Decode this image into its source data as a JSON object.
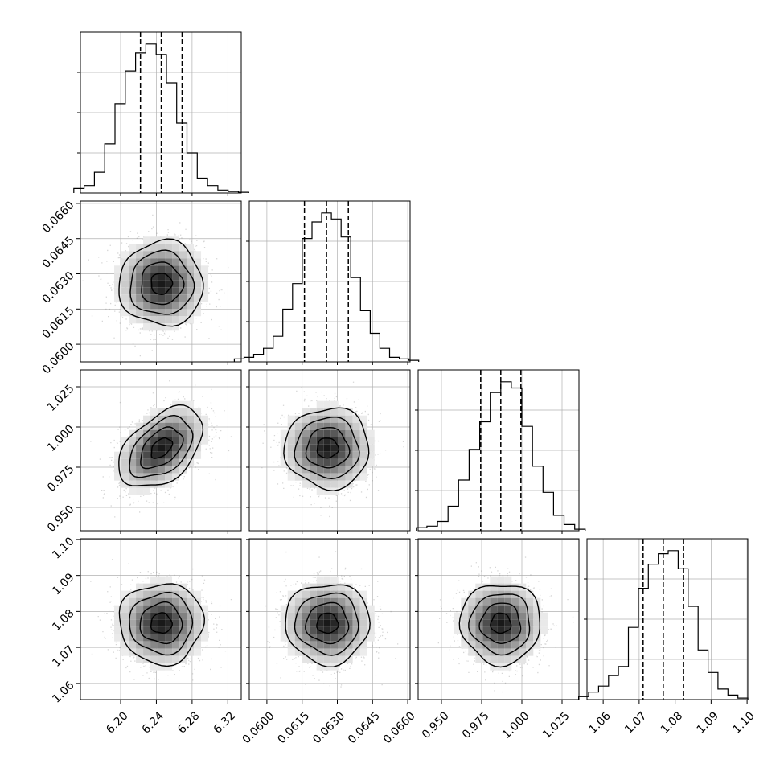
{
  "chart_data": {
    "type": "corner",
    "parameters": [
      {
        "ticks": [
          "6.20",
          "6.24",
          "6.28",
          "6.32"
        ],
        "range": [
          6.155,
          6.335
        ],
        "quantiles": [
          6.2222,
          6.2455,
          6.2688
        ],
        "hist": [
          0.03,
          0.05,
          0.14,
          0.33,
          0.6,
          0.82,
          0.94,
          1.0,
          0.93,
          0.74,
          0.47,
          0.27,
          0.1,
          0.05,
          0.02,
          0.01,
          0.005
        ]
      },
      {
        "ticks": [
          "0.0600",
          "0.0615",
          "0.0630",
          "0.0645",
          "0.0660"
        ],
        "range": [
          0.05925,
          0.0661
        ],
        "quantiles": [
          0.0616,
          0.06254,
          0.06347
        ],
        "hist": [
          0.02,
          0.03,
          0.05,
          0.09,
          0.17,
          0.35,
          0.52,
          0.82,
          0.93,
          0.99,
          0.95,
          0.83,
          0.56,
          0.34,
          0.19,
          0.09,
          0.03,
          0.02,
          0.01
        ]
      },
      {
        "ticks": [
          "0.950",
          "0.975",
          "1.000",
          "1.025"
        ],
        "range": [
          0.9355,
          1.0355
        ],
        "quantiles": [
          0.9744,
          0.9869,
          0.9994
        ],
        "hist": [
          0.02,
          0.03,
          0.06,
          0.16,
          0.33,
          0.53,
          0.71,
          0.9,
          0.97,
          0.93,
          0.68,
          0.42,
          0.25,
          0.1,
          0.04,
          0.01
        ]
      },
      {
        "ticks": [
          "1.06",
          "1.07",
          "1.08",
          "1.09",
          "1.10"
        ],
        "range": [
          1.0555,
          1.1002
        ],
        "quantiles": [
          1.0711,
          1.0767,
          1.0823
        ],
        "hist": [
          0.02,
          0.05,
          0.09,
          0.16,
          0.22,
          0.48,
          0.74,
          0.9,
          0.97,
          0.99,
          0.87,
          0.62,
          0.33,
          0.18,
          0.07,
          0.03,
          0.01
        ]
      }
    ],
    "pairs": [
      {
        "row": 1,
        "col": 0,
        "center": [
          6.2455,
          0.06258
        ],
        "sigma": [
          0.0235,
          0.0009
        ],
        "rho": 0.0
      },
      {
        "row": 2,
        "col": 0,
        "center": [
          6.2455,
          0.9869
        ],
        "sigma": [
          0.0235,
          0.0125
        ],
        "rho": 0.45
      },
      {
        "row": 2,
        "col": 1,
        "center": [
          0.06258,
          0.9869
        ],
        "sigma": [
          0.0009,
          0.0125
        ],
        "rho": 0.0
      },
      {
        "row": 3,
        "col": 0,
        "center": [
          6.2455,
          1.0767
        ],
        "sigma": [
          0.0235,
          0.0056
        ],
        "rho": 0.0
      },
      {
        "row": 3,
        "col": 1,
        "center": [
          0.06258,
          1.0767
        ],
        "sigma": [
          0.0009,
          0.0056
        ],
        "rho": 0.0
      },
      {
        "row": 3,
        "col": 2,
        "center": [
          0.9869,
          1.0767
        ],
        "sigma": [
          0.0125,
          0.0056
        ],
        "rho": 0.0
      }
    ],
    "contour_levels_sigma": [
      0.5,
      1.0,
      1.5,
      2.0
    ],
    "grid": true,
    "colors": {
      "line": "#000000",
      "grid": "#b0b0b0",
      "points": "#8a8a8a"
    }
  }
}
